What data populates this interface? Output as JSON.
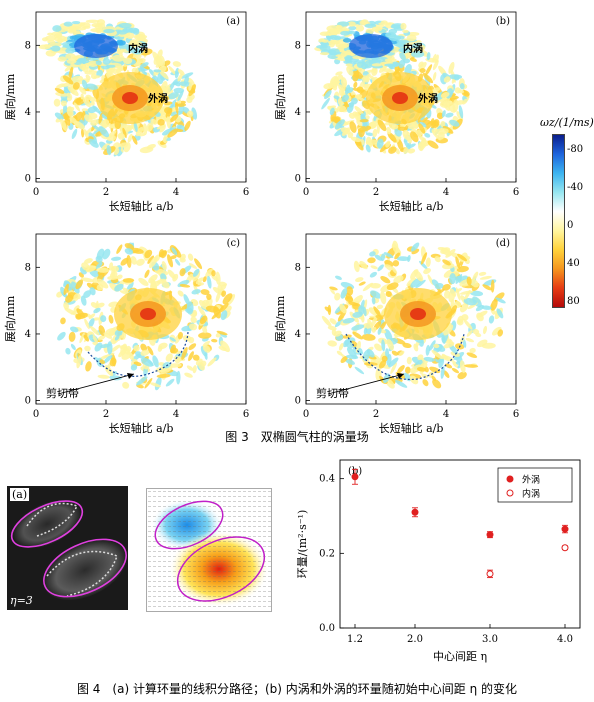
{
  "fig3": {
    "panels": [
      {
        "letter": "(a)",
        "inner_label": "内涡",
        "outer_label": "外涡",
        "shear_label": ""
      },
      {
        "letter": "(b)",
        "inner_label": "内涡",
        "outer_label": "外涡",
        "shear_label": ""
      },
      {
        "letter": "(c)",
        "inner_label": "",
        "outer_label": "",
        "shear_label": "剪切带"
      },
      {
        "letter": "(d)",
        "inner_label": "",
        "outer_label": "",
        "shear_label": "剪切带"
      }
    ],
    "x_ticks": [
      "0",
      "2",
      "4",
      "6"
    ],
    "y_ticks": [
      "8",
      "4",
      "0"
    ],
    "xlabel": "长短轴比 a/b",
    "ylabel": "展向/mm",
    "colorbar": {
      "title": "ωz/(1/ms)",
      "ticks": [
        "-80",
        "-40",
        "0",
        "40",
        "80"
      ],
      "colors": [
        "#0a1e8c",
        "#1e64dc",
        "#3cb4f0",
        "#96e6f0",
        "#ffffff",
        "#fff5a0",
        "#ffd23c",
        "#f5961e",
        "#e63c14",
        "#b40a0a"
      ]
    },
    "caption": "图 3　双椭圆气柱的涡量场"
  },
  "fig4": {
    "panel_a": {
      "letter": "(a)",
      "eta_label": "η=3"
    },
    "caption": "图 4　(a) 计算环量的线积分路径；(b) 内涡和外涡的环量随初始中心间距 η 的变化"
  },
  "chart_data": {
    "type": "scatter",
    "title": "(b)",
    "xlabel": "中心间距 η",
    "ylabel": "环量/(m²·s⁻¹)",
    "categories": [
      "1.2",
      "2.0",
      "3.0",
      "4.0"
    ],
    "xlim": [
      1.0,
      4.2
    ],
    "ylim": [
      0.0,
      0.45
    ],
    "y_ticks": [
      "0.0",
      "0.2",
      "0.4"
    ],
    "legend_position": "top-right",
    "series": [
      {
        "name": "外涡",
        "marker": "filled-circle",
        "color": "#e02020",
        "x": [
          1.2,
          2.0,
          3.0,
          4.0
        ],
        "y": [
          0.405,
          0.31,
          0.25,
          0.265
        ],
        "err": [
          0.02,
          0.012,
          0.008,
          0.01
        ]
      },
      {
        "name": "内涡",
        "marker": "open-circle",
        "color": "#e02020",
        "x": [
          3.0,
          4.0
        ],
        "y": [
          0.145,
          0.215
        ],
        "err": [
          0.01,
          0.005
        ]
      }
    ]
  }
}
